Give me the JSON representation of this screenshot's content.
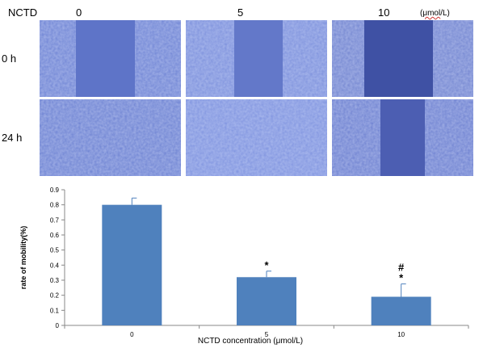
{
  "micrograph": {
    "drug_label": "NCTD",
    "columns": [
      "0",
      "5",
      "10"
    ],
    "unit_prefix": "(",
    "unit_word": "μmol",
    "unit_suffix": "/L)",
    "rows": [
      "0 h",
      "24 h"
    ]
  },
  "chart_data": {
    "type": "bar",
    "categories": [
      "0",
      "5",
      "10"
    ],
    "values": [
      0.8,
      0.32,
      0.19
    ],
    "error": [
      0.045,
      0.04,
      0.085
    ],
    "annotations": [
      [],
      [
        "*"
      ],
      [
        "*",
        "#"
      ]
    ],
    "title": "",
    "xlabel": "NCTD concentration (μmol/L)",
    "ylabel": "rate of mobility(%)",
    "ylim": [
      0,
      0.9
    ],
    "yticks": [
      "0",
      "0.1",
      "0.2",
      "0.3",
      "0.4",
      "0.5",
      "0.6",
      "0.7",
      "0.8",
      "0.9"
    ],
    "bar_color": "#4f81bd",
    "error_color": "#4f81bd",
    "grid": false,
    "legend": "none"
  }
}
